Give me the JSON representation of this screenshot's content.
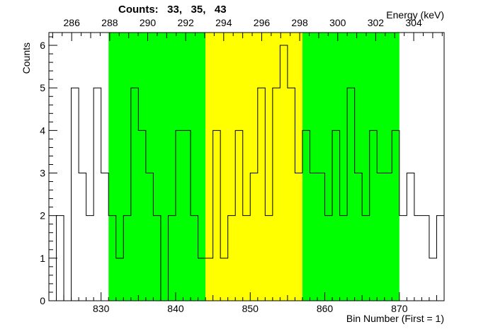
{
  "chart_data": {
    "type": "histogram",
    "title": "Counts:   33,   35,   43",
    "xlabel": "Bin Number (First = 1)",
    "ylabel": "Counts",
    "x2label": "Energy (keV)",
    "xlim": [
      823,
      876
    ],
    "ylim": [
      0,
      6.3
    ],
    "x_ticks": [
      830,
      840,
      850,
      860,
      870
    ],
    "y_ticks": [
      0,
      1,
      2,
      3,
      4,
      5,
      6
    ],
    "x2_ticks": [
      286,
      288,
      290,
      292,
      294,
      296,
      298,
      300,
      302,
      304
    ],
    "x2_range": [
      284.8,
      305.6
    ],
    "bin_start": 823,
    "counts": [
      0,
      2,
      0,
      5,
      3,
      2,
      5,
      3,
      2,
      1,
      2,
      5,
      4,
      3,
      2,
      0,
      2,
      4,
      4,
      2,
      1,
      1,
      4,
      1,
      2,
      4,
      2,
      3,
      5,
      2,
      5,
      6,
      5,
      3,
      4,
      3,
      3,
      2,
      4,
      2,
      5,
      3,
      2,
      4,
      3,
      3,
      4,
      2,
      3,
      2,
      2,
      1,
      2
    ],
    "regions": [
      {
        "from": 831,
        "to": 844,
        "color": "#00ff00"
      },
      {
        "from": 844,
        "to": 857,
        "color": "#ffff00"
      },
      {
        "from": 857,
        "to": 870,
        "color": "#00ff00"
      }
    ],
    "line_color": "#000000",
    "grid": false
  }
}
